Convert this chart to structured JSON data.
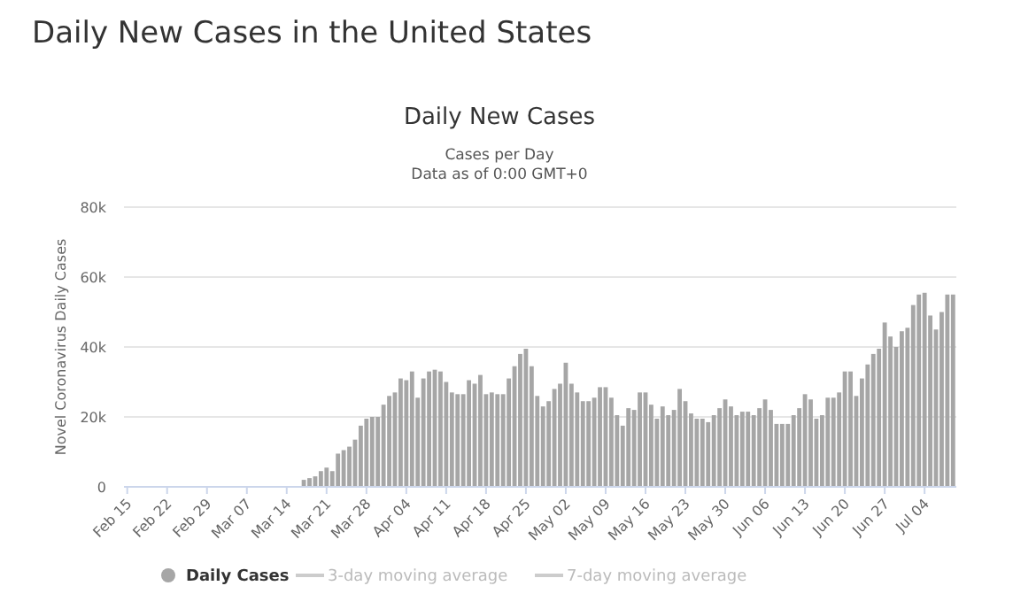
{
  "chart_data": {
    "type": "bar",
    "title": "Daily New Cases in the United States",
    "subtitle": "Daily New Cases",
    "annotations": [
      "Cases per Day",
      "Data as of 0:00 GMT+0"
    ],
    "ylabel": "Novel Coronavirus Daily Cases",
    "categories": [
      "Feb 15",
      null,
      null,
      null,
      null,
      null,
      null,
      "Feb 22",
      null,
      null,
      null,
      null,
      null,
      null,
      "Feb 29",
      null,
      null,
      null,
      null,
      null,
      null,
      "Mar 07",
      null,
      null,
      null,
      null,
      null,
      null,
      "Mar 14",
      null,
      null,
      null,
      null,
      null,
      null,
      "Mar 21",
      null,
      null,
      null,
      null,
      null,
      null,
      "Mar 28",
      null,
      null,
      null,
      null,
      null,
      null,
      "Apr 04",
      null,
      null,
      null,
      null,
      null,
      null,
      "Apr 11",
      null,
      null,
      null,
      null,
      null,
      null,
      "Apr 18",
      null,
      null,
      null,
      null,
      null,
      null,
      "Apr 25",
      null,
      null,
      null,
      null,
      null,
      null,
      "May 02",
      null,
      null,
      null,
      null,
      null,
      null,
      "May 09",
      null,
      null,
      null,
      null,
      null,
      null,
      "May 16",
      null,
      null,
      null,
      null,
      null,
      null,
      "May 23",
      null,
      null,
      null,
      null,
      null,
      null,
      "May 30",
      null,
      null,
      null,
      null,
      null,
      null,
      "Jun 06",
      null,
      null,
      null,
      null,
      null,
      null,
      "Jun 13",
      null,
      null,
      null,
      null,
      null,
      null,
      "Jun 20",
      null,
      null,
      null,
      null,
      null,
      null,
      "Jun 27",
      null,
      null,
      null,
      null,
      null,
      null,
      "Jul 04",
      null,
      null,
      null,
      null,
      null
    ],
    "series": [
      {
        "name": "Daily Cases",
        "color": "#a6a6a6",
        "values": [
          0,
          0,
          0,
          0,
          0,
          0,
          0,
          0,
          0,
          0,
          0,
          0,
          0,
          0,
          0,
          0,
          0,
          0,
          0,
          0,
          0,
          0,
          0,
          0,
          0,
          0,
          0,
          0,
          0,
          0,
          0,
          2000,
          2500,
          3000,
          4500,
          5500,
          4500,
          9500,
          10500,
          11500,
          13500,
          17500,
          19500,
          20000,
          20000,
          23500,
          26000,
          27000,
          31000,
          30500,
          33000,
          25500,
          31000,
          33000,
          33500,
          33000,
          30000,
          27000,
          26500,
          26500,
          30500,
          29500,
          32000,
          26500,
          27000,
          26500,
          26500,
          31000,
          34500,
          38000,
          39500,
          34500,
          26000,
          23000,
          24500,
          28000,
          29500,
          35500,
          29500,
          27000,
          24500,
          24500,
          25500,
          28500,
          28500,
          25500,
          20500,
          17500,
          22500,
          22000,
          27000,
          27000,
          23500,
          19500,
          23000,
          20500,
          22000,
          28000,
          24500,
          21000,
          19500,
          19500,
          18500,
          20500,
          22500,
          25000,
          23000,
          20500,
          21500,
          21500,
          20500,
          22500,
          25000,
          22000,
          18000,
          18000,
          18000,
          20500,
          22500,
          26500,
          25000,
          19500,
          20500,
          25500,
          25500,
          27000,
          33000,
          33000,
          26000,
          31000,
          35000,
          38000,
          39500,
          47000,
          43000,
          40000,
          44500,
          45500,
          52000,
          55000,
          55500,
          49000,
          45000,
          50000,
          55000,
          55000
        ]
      },
      {
        "name": "3-day moving average",
        "type": "line",
        "color": "#cccccc",
        "values": [
          null,
          null,
          null,
          null,
          null,
          null,
          null,
          null,
          null,
          null,
          null,
          null,
          null,
          null,
          null,
          null,
          null,
          null,
          null,
          null,
          null,
          null,
          null,
          null,
          null,
          null,
          null,
          null,
          null,
          null,
          null,
          null,
          null,
          null,
          null,
          null,
          null,
          null,
          null,
          null,
          null,
          null,
          null,
          null,
          null,
          null,
          null,
          null,
          null,
          null,
          null,
          null,
          null,
          null,
          null,
          null,
          null,
          null,
          null,
          null,
          null,
          null,
          null,
          null,
          null,
          null,
          null,
          null,
          null,
          null,
          null,
          null,
          null,
          null,
          null,
          null,
          null,
          null,
          null,
          null,
          null,
          null,
          null,
          null,
          null,
          null,
          null,
          null,
          null,
          null,
          null,
          null,
          null,
          null,
          null,
          null,
          null,
          null,
          null,
          null,
          null,
          null,
          null,
          null,
          null,
          null,
          null,
          null,
          null,
          null,
          null,
          null,
          null,
          null,
          null,
          null,
          null,
          null,
          null,
          null,
          null,
          null,
          null,
          null,
          null,
          null,
          null,
          null,
          null,
          null,
          null,
          null,
          null,
          null,
          null,
          null,
          null,
          null,
          null,
          null,
          null,
          null,
          null,
          null,
          null,
          null
        ]
      },
      {
        "name": "7-day moving average",
        "type": "line",
        "color": "#cccccc",
        "values": [
          null,
          null,
          null,
          null,
          null,
          null,
          null,
          null,
          null,
          null,
          null,
          null,
          null,
          null,
          null,
          null,
          null,
          null,
          null,
          null,
          null,
          null,
          null,
          null,
          null,
          null,
          null,
          null,
          null,
          null,
          null,
          null,
          null,
          null,
          null,
          null,
          null,
          null,
          null,
          null,
          null,
          null,
          null,
          null,
          null,
          null,
          null,
          null,
          null,
          null,
          null,
          null,
          null,
          null,
          null,
          null,
          null,
          null,
          null,
          null,
          null,
          null,
          null,
          null,
          null,
          null,
          null,
          null,
          null,
          null,
          null,
          null,
          null,
          null,
          null,
          null,
          null,
          null,
          null,
          null,
          null,
          null,
          null,
          null,
          null,
          null,
          null,
          null,
          null,
          null,
          null,
          null,
          null,
          null,
          null,
          null,
          null,
          null,
          null,
          null,
          null,
          null,
          null,
          null,
          null,
          null,
          null,
          null,
          null,
          null,
          null,
          null,
          null,
          null,
          null,
          null,
          null,
          null,
          null,
          null,
          null,
          null,
          null,
          null,
          null,
          null,
          null,
          null,
          null,
          null,
          null,
          null,
          null,
          null,
          null,
          null,
          null,
          null,
          null,
          null,
          null,
          null,
          null,
          null,
          null,
          null
        ]
      }
    ],
    "ylim": [
      0,
      80000
    ],
    "yticks": [
      0,
      {
        "value": 20000,
        "label": "20k"
      },
      {
        "value": 40000,
        "label": "40k"
      },
      {
        "value": 60000,
        "label": "60k"
      },
      {
        "value": 80000,
        "label": "80k"
      }
    ],
    "grid": "y",
    "legend": "bottom"
  }
}
